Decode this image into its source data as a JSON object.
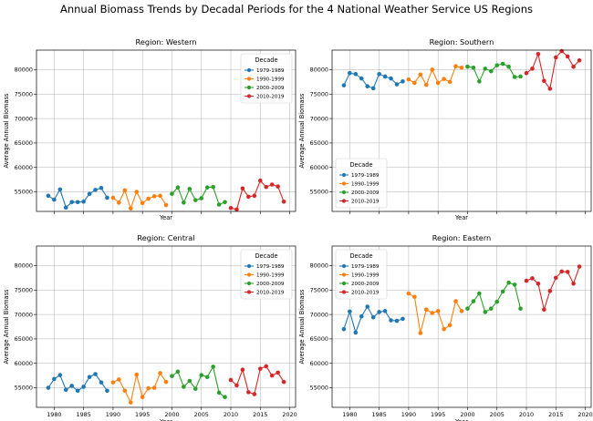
{
  "title": "Annual Biomass Trends by Decadal Periods for the 4 National Weather Service US Regions",
  "chart_data": [
    {
      "type": "line",
      "title": "Region: Western",
      "xlabel": "Year",
      "ylabel": "Average Annual Biomass",
      "xlim": [
        1977,
        2021
      ],
      "ylim": [
        51000,
        84000
      ],
      "yticks": [
        55000,
        60000,
        65000,
        70000,
        75000,
        80000
      ],
      "xticks": [
        1980,
        1985,
        1990,
        1995,
        2000,
        2005,
        2010,
        2015,
        2020
      ],
      "show_xtick_labels": false,
      "legend_title": "Decade",
      "legend_position": "top-right",
      "grid": true,
      "series": [
        {
          "name": "1979-1989",
          "color": "#1f77b4",
          "x": [
            1979,
            1980,
            1981,
            1982,
            1983,
            1984,
            1985,
            1986,
            1987,
            1988,
            1989
          ],
          "y": [
            54200,
            53400,
            55500,
            51800,
            52900,
            52900,
            53000,
            54600,
            55400,
            55800,
            53800
          ]
        },
        {
          "name": "1990-1999",
          "color": "#ff7f0e",
          "x": [
            1990,
            1991,
            1992,
            1993,
            1994,
            1995,
            1996,
            1997,
            1998,
            1999
          ],
          "y": [
            53800,
            52800,
            55300,
            51600,
            55000,
            52700,
            53600,
            54100,
            54200,
            52300
          ]
        },
        {
          "name": "2000-2009",
          "color": "#2ca02c",
          "x": [
            2000,
            2001,
            2002,
            2003,
            2004,
            2005,
            2006,
            2007,
            2008,
            2009
          ],
          "y": [
            54600,
            55900,
            52800,
            55600,
            53300,
            53700,
            55900,
            56000,
            52400,
            52900
          ]
        },
        {
          "name": "2010-2019",
          "color": "#d62728",
          "x": [
            2010,
            2011,
            2012,
            2013,
            2014,
            2015,
            2016,
            2017,
            2018,
            2019
          ],
          "y": [
            51700,
            51400,
            55700,
            54000,
            54200,
            57300,
            56000,
            56500,
            56100,
            53000
          ]
        }
      ]
    },
    {
      "type": "line",
      "title": "Region: Southern",
      "xlabel": "Year",
      "ylabel": "Average Annual Biomass",
      "xlim": [
        1977,
        2021
      ],
      "ylim": [
        51000,
        84000
      ],
      "yticks": [
        55000,
        60000,
        65000,
        70000,
        75000,
        80000
      ],
      "xticks": [
        1980,
        1985,
        1990,
        1995,
        2000,
        2005,
        2010,
        2015,
        2020
      ],
      "show_xtick_labels": false,
      "legend_title": "Decade",
      "legend_position": "bottom-left",
      "grid": true,
      "series": [
        {
          "name": "1979-1989",
          "color": "#1f77b4",
          "x": [
            1979,
            1980,
            1981,
            1982,
            1983,
            1984,
            1985,
            1986,
            1987,
            1988,
            1989
          ],
          "y": [
            76800,
            79300,
            79100,
            78200,
            76600,
            76200,
            79100,
            78600,
            78200,
            77000,
            77600
          ]
        },
        {
          "name": "1990-1999",
          "color": "#ff7f0e",
          "x": [
            1990,
            1991,
            1992,
            1993,
            1994,
            1995,
            1996,
            1997,
            1998,
            1999
          ],
          "y": [
            78000,
            77300,
            79000,
            76900,
            80000,
            77300,
            78100,
            77500,
            80700,
            80400
          ]
        },
        {
          "name": "2000-2009",
          "color": "#2ca02c",
          "x": [
            2000,
            2001,
            2002,
            2003,
            2004,
            2005,
            2006,
            2007,
            2008,
            2009
          ],
          "y": [
            80600,
            80400,
            77600,
            80200,
            79700,
            80900,
            81200,
            80600,
            78500,
            78600
          ]
        },
        {
          "name": "2010-2019",
          "color": "#d62728",
          "x": [
            2010,
            2011,
            2012,
            2013,
            2014,
            2015,
            2016,
            2017,
            2018,
            2019
          ],
          "y": [
            79300,
            80200,
            83200,
            77700,
            76100,
            82500,
            83800,
            82700,
            80600,
            81900
          ]
        }
      ]
    },
    {
      "type": "line",
      "title": "Region: Central",
      "xlabel": "Year",
      "ylabel": "Average Annual Biomass",
      "xlim": [
        1977,
        2021
      ],
      "ylim": [
        51000,
        84000
      ],
      "yticks": [
        55000,
        60000,
        65000,
        70000,
        75000,
        80000
      ],
      "xticks": [
        1980,
        1985,
        1990,
        1995,
        2000,
        2005,
        2010,
        2015,
        2020
      ],
      "show_xtick_labels": true,
      "legend_title": "Decade",
      "legend_position": "top-right",
      "grid": true,
      "series": [
        {
          "name": "1979-1989",
          "color": "#1f77b4",
          "x": [
            1979,
            1980,
            1981,
            1982,
            1983,
            1984,
            1985,
            1986,
            1987,
            1988,
            1989
          ],
          "y": [
            55000,
            56800,
            57600,
            54600,
            55400,
            54400,
            55200,
            57200,
            57800,
            56100,
            54400
          ]
        },
        {
          "name": "1990-1999",
          "color": "#ff7f0e",
          "x": [
            1990,
            1991,
            1992,
            1993,
            1994,
            1995,
            1996,
            1997,
            1998,
            1999
          ],
          "y": [
            56100,
            56700,
            54400,
            52000,
            57700,
            53100,
            54900,
            55000,
            58000,
            56200
          ]
        },
        {
          "name": "2000-2009",
          "color": "#2ca02c",
          "x": [
            2000,
            2001,
            2002,
            2003,
            2004,
            2005,
            2006,
            2007,
            2008,
            2009
          ],
          "y": [
            57400,
            58300,
            55200,
            56400,
            54800,
            57600,
            57200,
            59300,
            54000,
            53100
          ]
        },
        {
          "name": "2010-2019",
          "color": "#d62728",
          "x": [
            2010,
            2011,
            2012,
            2013,
            2014,
            2015,
            2016,
            2017,
            2018,
            2019
          ],
          "y": [
            56600,
            55500,
            58700,
            54100,
            53700,
            58900,
            59400,
            57500,
            58100,
            56200
          ]
        }
      ]
    },
    {
      "type": "line",
      "title": "Region: Eastern",
      "xlabel": "Year",
      "ylabel": "Average Annual Biomass",
      "xlim": [
        1977,
        2021
      ],
      "ylim": [
        51000,
        84000
      ],
      "yticks": [
        55000,
        60000,
        65000,
        70000,
        75000,
        80000
      ],
      "xticks": [
        1980,
        1985,
        1990,
        1995,
        2000,
        2005,
        2010,
        2015,
        2020
      ],
      "show_xtick_labels": true,
      "legend_title": "Decade",
      "legend_position": "top-left",
      "grid": true,
      "series": [
        {
          "name": "1979-1989",
          "color": "#1f77b4",
          "x": [
            1979,
            1980,
            1981,
            1982,
            1983,
            1984,
            1985,
            1986,
            1987,
            1988,
            1989
          ],
          "y": [
            67000,
            70600,
            66300,
            69600,
            71600,
            69400,
            70500,
            70700,
            68800,
            68700,
            69100
          ]
        },
        {
          "name": "1990-1999",
          "color": "#ff7f0e",
          "x": [
            1990,
            1991,
            1992,
            1993,
            1994,
            1995,
            1996,
            1997,
            1998,
            1999
          ],
          "y": [
            74300,
            73600,
            66200,
            71000,
            70300,
            70700,
            67000,
            67800,
            72700,
            70700
          ]
        },
        {
          "name": "2000-2009",
          "color": "#2ca02c",
          "x": [
            2000,
            2001,
            2002,
            2003,
            2004,
            2005,
            2006,
            2007,
            2008,
            2009
          ],
          "y": [
            71200,
            72700,
            74300,
            70500,
            71200,
            72600,
            74700,
            76500,
            76100,
            71200
          ]
        },
        {
          "name": "2010-2019",
          "color": "#d62728",
          "x": [
            2010,
            2011,
            2012,
            2013,
            2014,
            2015,
            2016,
            2017,
            2018,
            2019
          ],
          "y": [
            76900,
            77400,
            76300,
            71000,
            74800,
            77500,
            78800,
            78700,
            76300,
            79800
          ]
        }
      ]
    }
  ]
}
